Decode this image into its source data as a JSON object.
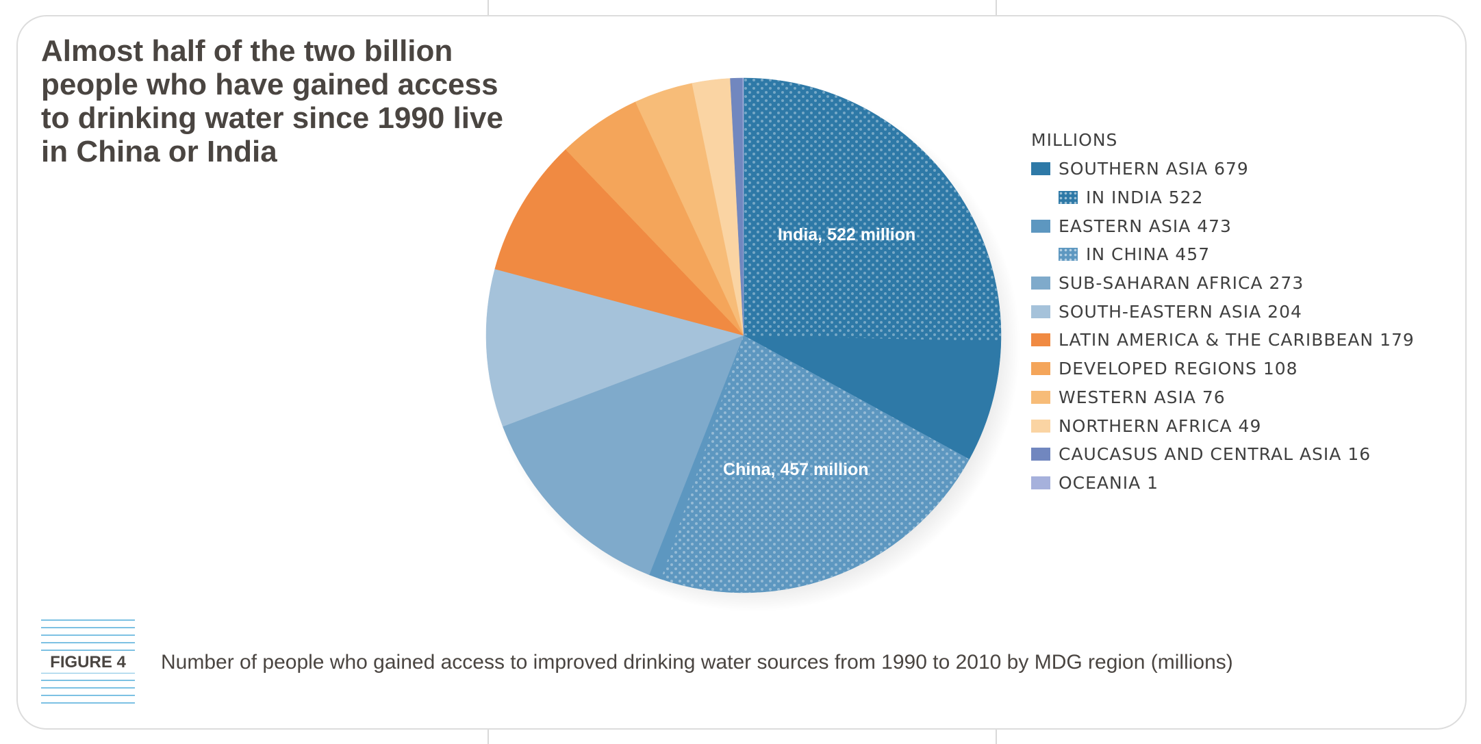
{
  "title": "Almost half of the two billion people who have gained access to drinking water since 1990 live in China or India",
  "figure": {
    "label": "FIGURE 4",
    "caption": "Number of people who gained access to improved drinking water sources from 1990 to 2010 by MDG region (millions)"
  },
  "chart_data": {
    "type": "pie",
    "unit": "MILLIONS",
    "legend_title": "MILLIONS",
    "legend_position": "right",
    "slices": [
      {
        "label": "SOUTHERN ASIA",
        "value": 679,
        "color": "#2e79a7"
      },
      {
        "label": "EASTERN ASIA",
        "value": 473,
        "color": "#5d97c0"
      },
      {
        "label": "SUB-SAHARAN AFRICA",
        "value": 273,
        "color": "#7faacb"
      },
      {
        "label": "SOUTH-EASTERN ASIA",
        "value": 204,
        "color": "#a5c2da"
      },
      {
        "label": "LATIN AMERICA & THE CARIBBEAN",
        "value": 179,
        "color": "#f08a42"
      },
      {
        "label": "DEVELOPED REGIONS",
        "value": 108,
        "color": "#f4a55a"
      },
      {
        "label": "WESTERN ASIA",
        "value": 76,
        "color": "#f7bc78"
      },
      {
        "label": "NORTHERN AFRICA",
        "value": 49,
        "color": "#fad4a3"
      },
      {
        "label": "CAUCASUS AND CENTRAL ASIA",
        "value": 16,
        "color": "#7187bf"
      },
      {
        "label": "OCEANIA",
        "value": 1,
        "color": "#a6b1dc"
      }
    ],
    "sub_slices": [
      {
        "label": "IN INDIA",
        "value": 522,
        "parent": "SOUTHERN ASIA",
        "pattern": "dotted",
        "annotation": "India, 522 million"
      },
      {
        "label": "IN CHINA",
        "value": 457,
        "parent": "EASTERN ASIA",
        "pattern": "dotted",
        "annotation": "China, 457 million"
      }
    ],
    "legend": [
      {
        "text": "SOUTHERN ASIA 679",
        "color": "#2e79a7",
        "dotted": false,
        "indent": false
      },
      {
        "text": "IN INDIA 522",
        "color": "#2e79a7",
        "dotted": true,
        "indent": true
      },
      {
        "text": "EASTERN ASIA 473",
        "color": "#5d97c0",
        "dotted": false,
        "indent": false
      },
      {
        "text": "IN CHINA 457",
        "color": "#5d97c0",
        "dotted": true,
        "indent": true
      },
      {
        "text": "SUB-SAHARAN AFRICA 273",
        "color": "#7faacb",
        "dotted": false,
        "indent": false
      },
      {
        "text": "SOUTH-EASTERN ASIA 204",
        "color": "#a5c2da",
        "dotted": false,
        "indent": false
      },
      {
        "text": "LATIN AMERICA & THE CARIBBEAN 179",
        "color": "#f08a42",
        "dotted": false,
        "indent": false
      },
      {
        "text": "DEVELOPED REGIONS 108",
        "color": "#f4a55a",
        "dotted": false,
        "indent": false
      },
      {
        "text": "WESTERN ASIA 76",
        "color": "#f7bc78",
        "dotted": false,
        "indent": false
      },
      {
        "text": "NORTHERN AFRICA 49",
        "color": "#fad4a3",
        "dotted": false,
        "indent": false
      },
      {
        "text": "CAUCASUS AND CENTRAL ASIA 16",
        "color": "#7187bf",
        "dotted": false,
        "indent": false
      },
      {
        "text": "OCEANIA 1",
        "color": "#a6b1dc",
        "dotted": false,
        "indent": false
      }
    ]
  }
}
